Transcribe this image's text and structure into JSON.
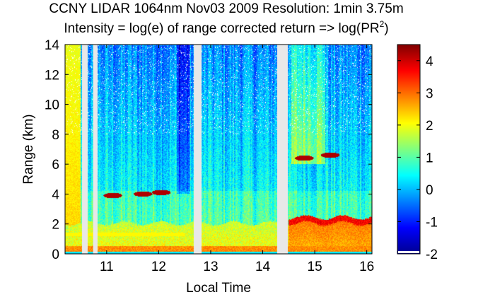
{
  "chart_data": {
    "type": "heatmap",
    "title_line1": "CCNY LIDAR 1064nm Nov03 2009 Resolution: 1min 3.75m",
    "title_line2_prefix": "Intensity = log(e) of range corrected return => log(PR",
    "title_line2_sup": "2",
    "title_line2_suffix": ")",
    "xlabel": "Local Time",
    "ylabel": "Range (km)",
    "xlim": [
      10.2,
      16.1
    ],
    "ylim": [
      0,
      14
    ],
    "xticks": [
      11,
      12,
      13,
      14,
      15,
      16
    ],
    "yticks": [
      0,
      2,
      4,
      6,
      8,
      10,
      12,
      14
    ],
    "colorbar": {
      "range": [
        -2,
        4.5
      ],
      "ticks": [
        -2,
        -1,
        0,
        1,
        2,
        3,
        4
      ],
      "colormap": "jet"
    },
    "data_gaps_hours": [
      [
        10.53,
        10.63
      ],
      [
        10.74,
        10.82
      ],
      [
        12.68,
        12.82
      ],
      [
        14.28,
        14.48
      ]
    ],
    "features": {
      "surface_layer_top_km": 2.0,
      "low_cloud_patches": [
        {
          "time": 11.12,
          "range_km": 3.9
        },
        {
          "time": 11.7,
          "range_km": 4.0
        },
        {
          "time": 12.05,
          "range_km": 4.1
        },
        {
          "time": 14.8,
          "range_km": 6.4
        },
        {
          "time": 15.3,
          "range_km": 6.6
        }
      ]
    }
  },
  "colors": {
    "gap": "#e8e8e8",
    "background": "#ffffff"
  }
}
